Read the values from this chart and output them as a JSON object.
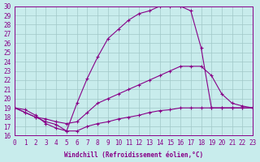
{
  "xlabel": "Windchill (Refroidissement éolien,°C)",
  "bg_color": "#c8ecec",
  "grid_color": "#a0c8c8",
  "line_color": "#880088",
  "xmin": 0,
  "xmax": 23,
  "ymin": 16,
  "ymax": 30,
  "line1_x": [
    0,
    1,
    2,
    3,
    4,
    5,
    6,
    7,
    8,
    9,
    10,
    11,
    12,
    13,
    14,
    15,
    16,
    17,
    18,
    19,
    20,
    21,
    22,
    23
  ],
  "line1_y": [
    19,
    18.8,
    18.2,
    17.3,
    16.8,
    16.5,
    19.5,
    22.2,
    24.5,
    26.5,
    27.5,
    28.5,
    29.2,
    29.5,
    30.0,
    30.0,
    30.0,
    29.5,
    25.5,
    19.0,
    19.0,
    19.0,
    19.0,
    19.0
  ],
  "line2_x": [
    0,
    1,
    2,
    3,
    4,
    5,
    6,
    7,
    8,
    9,
    10,
    11,
    12,
    13,
    14,
    15,
    16,
    17,
    18,
    19,
    20,
    21,
    22,
    23
  ],
  "line2_y": [
    19,
    18.5,
    18.0,
    17.8,
    17.5,
    17.3,
    17.5,
    18.5,
    19.5,
    20.0,
    20.5,
    21.0,
    21.5,
    22.0,
    22.5,
    23.0,
    23.5,
    23.5,
    23.5,
    22.5,
    20.5,
    19.5,
    19.2,
    19.0
  ],
  "line3_x": [
    0,
    1,
    2,
    3,
    4,
    5,
    6,
    7,
    8,
    9,
    10,
    11,
    12,
    13,
    14,
    15,
    16,
    17,
    18,
    19,
    20,
    21,
    22,
    23
  ],
  "line3_y": [
    19,
    18.5,
    18.0,
    17.5,
    17.2,
    16.5,
    16.5,
    17.0,
    17.3,
    17.5,
    17.8,
    18.0,
    18.2,
    18.5,
    18.7,
    18.8,
    19.0,
    19.0,
    19.0,
    19.0,
    19.0,
    19.0,
    19.0,
    19.0
  ]
}
